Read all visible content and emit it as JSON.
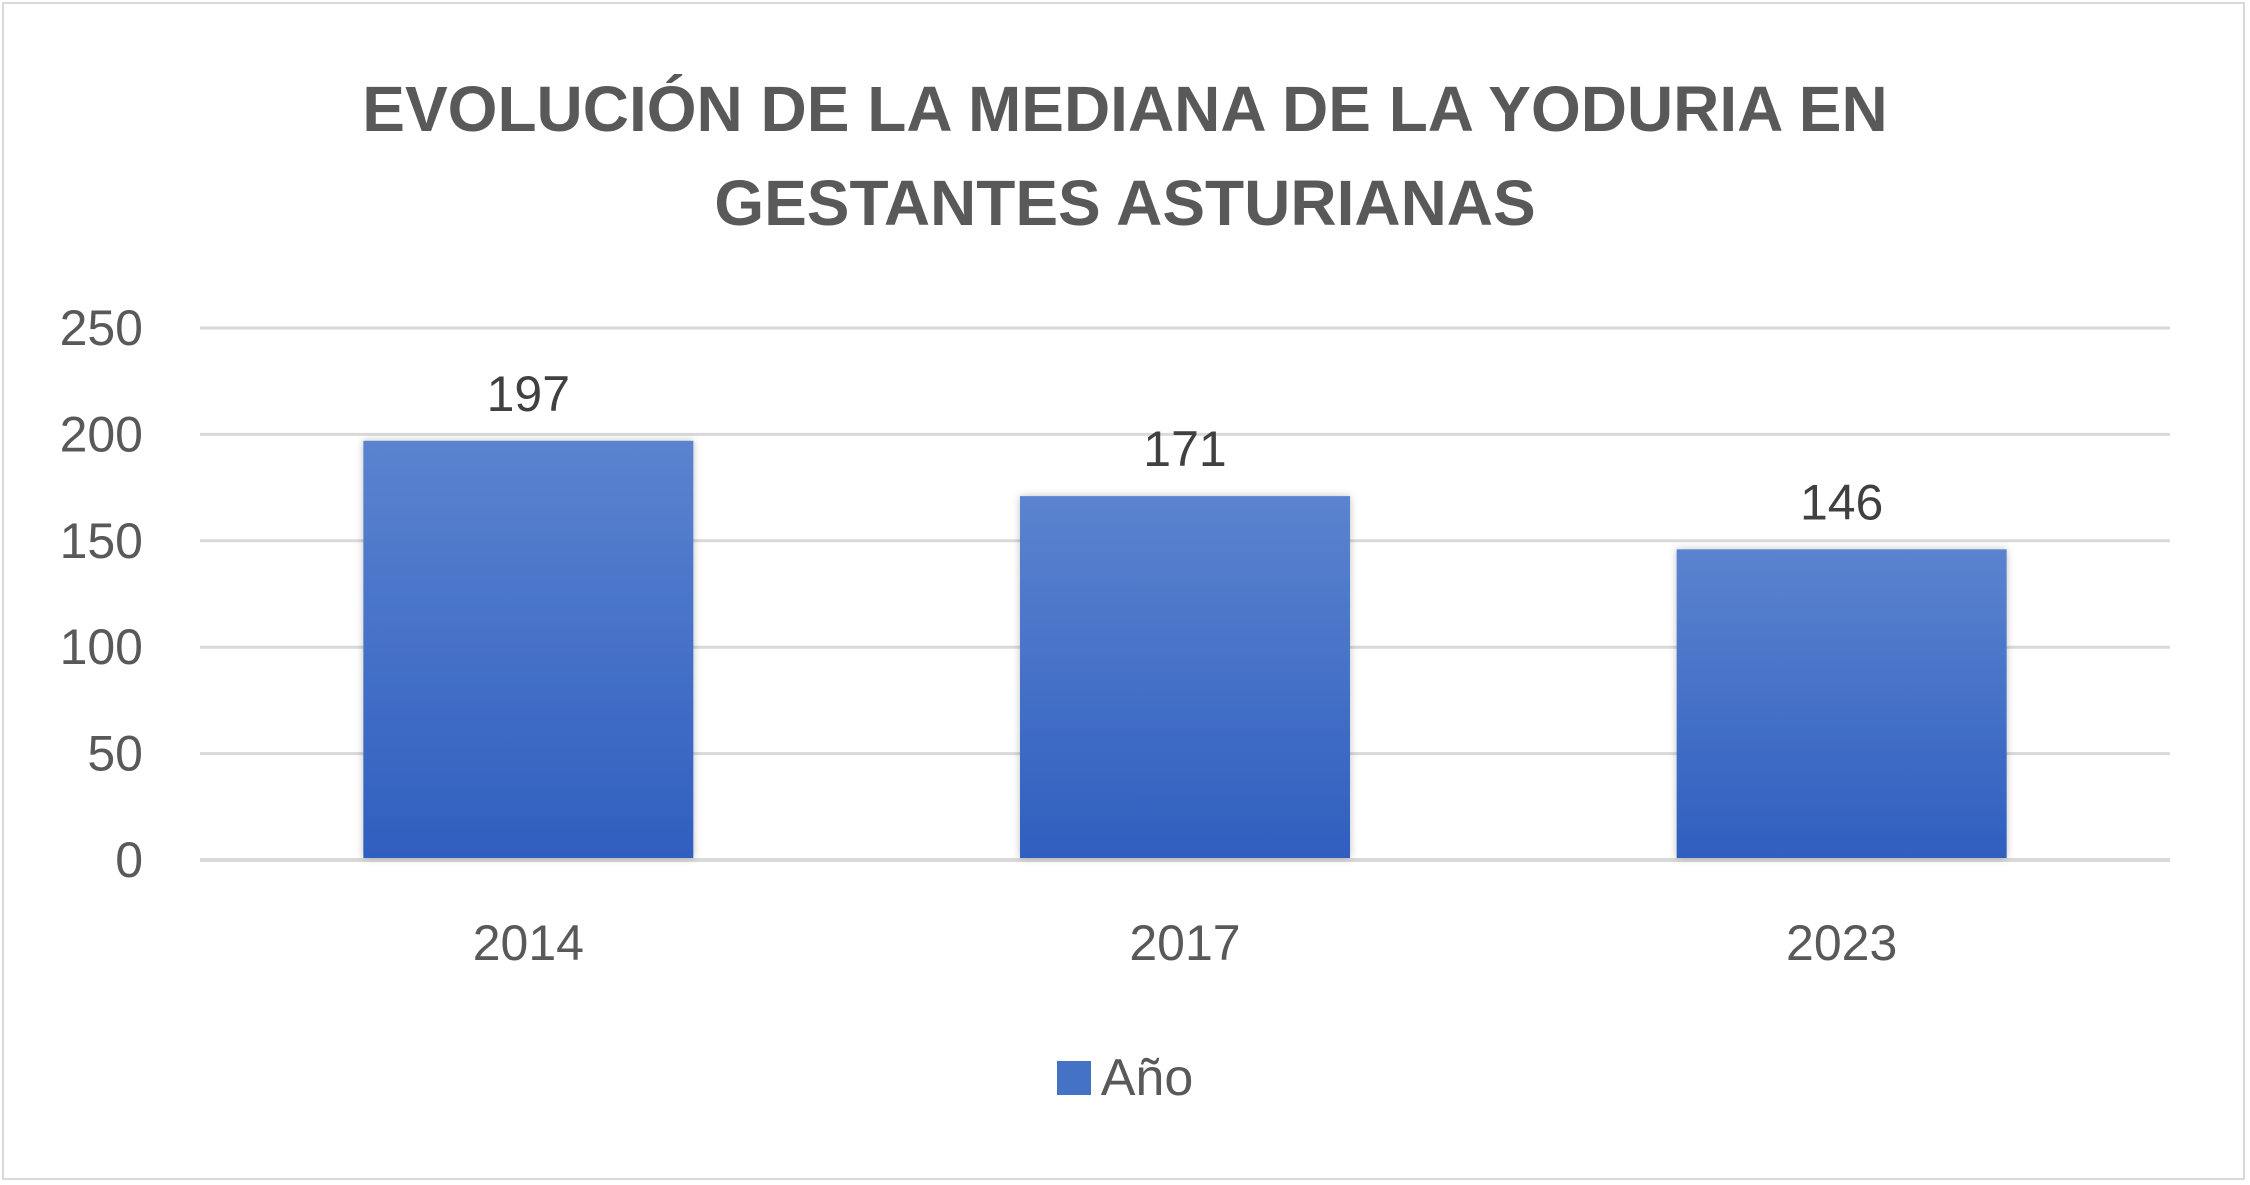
{
  "chart_data": {
    "type": "bar",
    "title": "EVOLUCIÓN DE LA MEDIANA DE LA YODURIA EN GESTANTES ASTURIANAS",
    "title_lines": [
      "EVOLUCIÓN DE LA MEDIANA DE LA YODURIA EN",
      "GESTANTES ASTURIANAS"
    ],
    "categories": [
      "2014",
      "2017",
      "2023"
    ],
    "series": [
      {
        "name": "Año",
        "values": [
          197,
          171,
          146
        ],
        "color": "#4472c4"
      }
    ],
    "data_labels": [
      "197",
      "171",
      "146"
    ],
    "xlabel": "",
    "ylabel": "",
    "ylim": [
      0,
      250
    ],
    "yticks": [
      0,
      50,
      100,
      150,
      200,
      250
    ],
    "grid": true,
    "legend_position": "bottom",
    "colors": {
      "bar_top": "#5b83cf",
      "bar_bottom": "#2f5fbf",
      "gridline": "#d9d9d9",
      "text": "#595959"
    }
  }
}
